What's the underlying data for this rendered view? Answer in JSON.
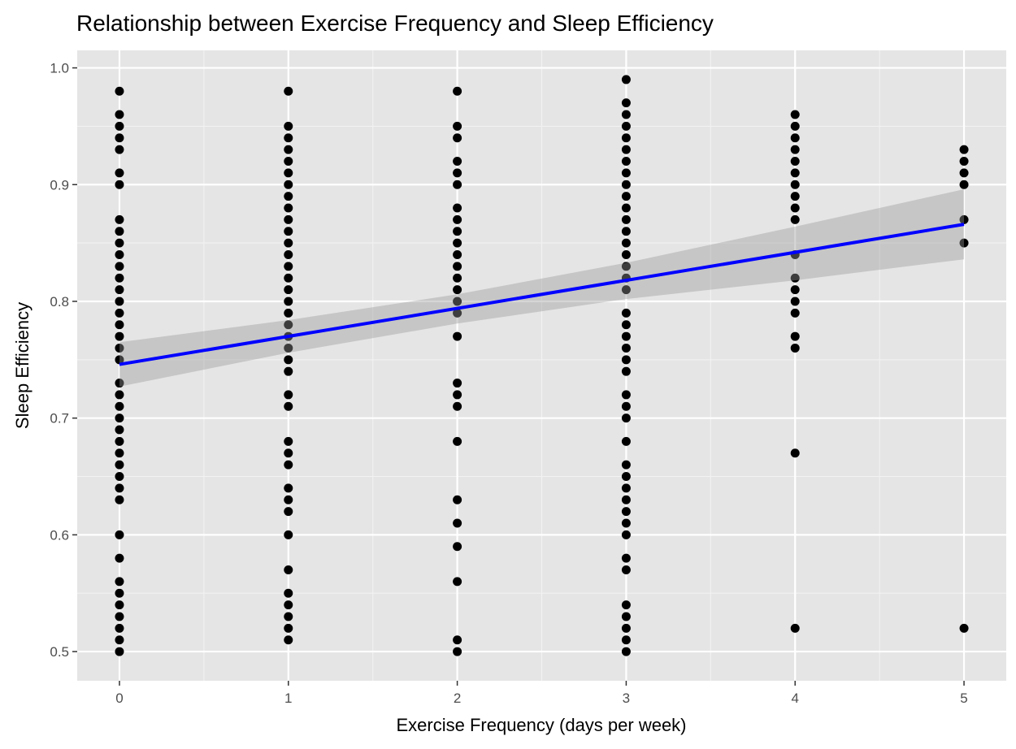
{
  "chart_data": {
    "type": "scatter",
    "title": "Relationship between Exercise Frequency and Sleep Efficiency",
    "xlabel": "Exercise Frequency (days per week)",
    "ylabel": "Sleep Efficiency",
    "xlim": [
      -0.25,
      5.25
    ],
    "ylim": [
      0.475,
      1.015
    ],
    "x_ticks": [
      0,
      1,
      2,
      3,
      4,
      5
    ],
    "x_tick_labels": [
      "0",
      "1",
      "2",
      "3",
      "4",
      "5"
    ],
    "y_ticks": [
      0.5,
      0.6,
      0.7,
      0.8,
      0.9,
      1.0
    ],
    "y_tick_labels": [
      "0.5",
      "0.6",
      "0.7",
      "0.8",
      "0.9",
      "1.0"
    ],
    "grid": true,
    "panel_background": "#e5e5e5",
    "point_color": "#000000",
    "series": [
      {
        "points_by_x": [
          {
            "x": 0,
            "y": [
              0.98,
              0.96,
              0.95,
              0.94,
              0.93,
              0.91,
              0.9,
              0.87,
              0.86,
              0.85,
              0.84,
              0.83,
              0.82,
              0.81,
              0.8,
              0.79,
              0.78,
              0.77,
              0.76,
              0.75,
              0.73,
              0.72,
              0.71,
              0.7,
              0.69,
              0.68,
              0.67,
              0.66,
              0.65,
              0.64,
              0.63,
              0.6,
              0.58,
              0.56,
              0.55,
              0.54,
              0.53,
              0.52,
              0.51,
              0.5
            ]
          },
          {
            "x": 1,
            "y": [
              0.98,
              0.95,
              0.94,
              0.93,
              0.92,
              0.91,
              0.9,
              0.89,
              0.88,
              0.87,
              0.86,
              0.85,
              0.84,
              0.83,
              0.82,
              0.81,
              0.8,
              0.79,
              0.78,
              0.77,
              0.76,
              0.75,
              0.74,
              0.72,
              0.71,
              0.68,
              0.67,
              0.66,
              0.64,
              0.63,
              0.62,
              0.6,
              0.57,
              0.55,
              0.54,
              0.53,
              0.52,
              0.51
            ]
          },
          {
            "x": 2,
            "y": [
              0.98,
              0.95,
              0.94,
              0.92,
              0.91,
              0.9,
              0.88,
              0.87,
              0.86,
              0.85,
              0.84,
              0.83,
              0.82,
              0.81,
              0.8,
              0.79,
              0.77,
              0.73,
              0.72,
              0.71,
              0.68,
              0.63,
              0.61,
              0.59,
              0.56,
              0.51,
              0.5
            ]
          },
          {
            "x": 3,
            "y": [
              0.99,
              0.97,
              0.96,
              0.95,
              0.94,
              0.93,
              0.92,
              0.91,
              0.9,
              0.89,
              0.88,
              0.87,
              0.86,
              0.85,
              0.84,
              0.83,
              0.82,
              0.81,
              0.79,
              0.78,
              0.77,
              0.76,
              0.75,
              0.74,
              0.72,
              0.71,
              0.7,
              0.68,
              0.66,
              0.65,
              0.64,
              0.63,
              0.62,
              0.61,
              0.6,
              0.58,
              0.57,
              0.54,
              0.53,
              0.52,
              0.51,
              0.5
            ]
          },
          {
            "x": 4,
            "y": [
              0.96,
              0.95,
              0.94,
              0.93,
              0.92,
              0.91,
              0.9,
              0.89,
              0.88,
              0.87,
              0.84,
              0.82,
              0.81,
              0.8,
              0.79,
              0.77,
              0.76,
              0.67,
              0.52
            ]
          },
          {
            "x": 5,
            "y": [
              0.93,
              0.92,
              0.91,
              0.9,
              0.87,
              0.85,
              0.52
            ]
          }
        ]
      }
    ],
    "trend_line": {
      "method": "linear",
      "color": "#0000ff",
      "x": [
        0,
        5
      ],
      "y": [
        0.746,
        0.866
      ],
      "confidence_band": {
        "color": "#999999",
        "x": [
          0,
          1,
          2,
          3,
          4,
          5
        ],
        "lower": [
          0.727,
          0.756,
          0.781,
          0.802,
          0.818,
          0.836
        ],
        "upper": [
          0.765,
          0.784,
          0.806,
          0.833,
          0.864,
          0.896
        ]
      }
    }
  }
}
